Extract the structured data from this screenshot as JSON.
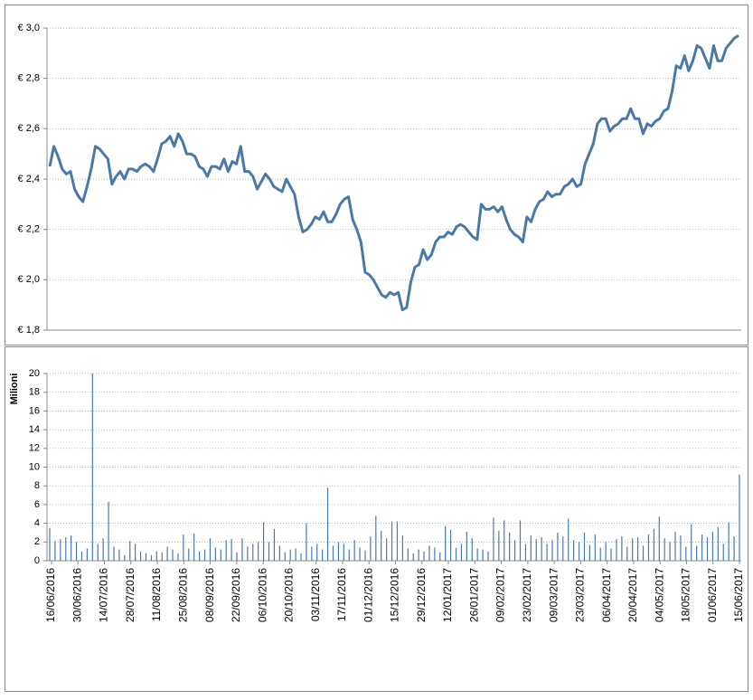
{
  "chart_data": [
    {
      "type": "line",
      "ylim": [
        1.8,
        3.0
      ],
      "yticks": [
        {
          "value": 1.8,
          "label": "€ 1,8"
        },
        {
          "value": 2.0,
          "label": "€ 2,0"
        },
        {
          "value": 2.2,
          "label": "€ 2,2"
        },
        {
          "value": 2.4,
          "label": "€ 2,4"
        },
        {
          "value": 2.6,
          "label": "€ 2,6"
        },
        {
          "value": 2.8,
          "label": "€ 2,8"
        },
        {
          "value": 3.0,
          "label": "€ 3,0"
        }
      ],
      "grid": true,
      "color": "#4a79a8",
      "values": [
        2.45,
        2.53,
        2.49,
        2.44,
        2.42,
        2.43,
        2.36,
        2.33,
        2.31,
        2.37,
        2.44,
        2.53,
        2.52,
        2.5,
        2.48,
        2.38,
        2.41,
        2.43,
        2.4,
        2.44,
        2.44,
        2.43,
        2.45,
        2.46,
        2.45,
        2.43,
        2.48,
        2.54,
        2.55,
        2.57,
        2.53,
        2.58,
        2.55,
        2.5,
        2.5,
        2.49,
        2.45,
        2.44,
        2.41,
        2.45,
        2.45,
        2.44,
        2.48,
        2.43,
        2.47,
        2.46,
        2.53,
        2.43,
        2.43,
        2.41,
        2.36,
        2.39,
        2.42,
        2.4,
        2.37,
        2.36,
        2.35,
        2.4,
        2.37,
        2.34,
        2.25,
        2.19,
        2.2,
        2.22,
        2.25,
        2.24,
        2.27,
        2.23,
        2.23,
        2.26,
        2.3,
        2.32,
        2.33,
        2.24,
        2.2,
        2.15,
        2.03,
        2.02,
        2.0,
        1.97,
        1.94,
        1.93,
        1.95,
        1.94,
        1.95,
        1.88,
        1.89,
        1.99,
        2.05,
        2.06,
        2.12,
        2.08,
        2.1,
        2.15,
        2.17,
        2.17,
        2.19,
        2.18,
        2.21,
        2.22,
        2.21,
        2.19,
        2.17,
        2.16,
        2.3,
        2.28,
        2.28,
        2.29,
        2.27,
        2.29,
        2.24,
        2.2,
        2.18,
        2.17,
        2.15,
        2.25,
        2.23,
        2.28,
        2.31,
        2.32,
        2.35,
        2.33,
        2.34,
        2.34,
        2.37,
        2.38,
        2.4,
        2.37,
        2.38,
        2.46,
        2.5,
        2.54,
        2.62,
        2.64,
        2.64,
        2.59,
        2.61,
        2.62,
        2.64,
        2.64,
        2.68,
        2.64,
        2.64,
        2.58,
        2.62,
        2.61,
        2.63,
        2.64,
        2.67,
        2.68,
        2.75,
        2.85,
        2.84,
        2.89,
        2.83,
        2.87,
        2.93,
        2.92,
        2.88,
        2.84,
        2.93,
        2.87,
        2.87,
        2.92,
        2.94,
        2.96,
        2.97
      ]
    },
    {
      "type": "bar",
      "ylabel": "Milioni",
      "ylim": [
        0,
        20
      ],
      "yticks": [
        0,
        2,
        4,
        6,
        8,
        10,
        12,
        14,
        16,
        18,
        20
      ],
      "grid": true,
      "color": "#4a7ab0",
      "xticks": [
        "16/06/2016",
        "30/06/2016",
        "14/07/2016",
        "28/07/2016",
        "11/08/2016",
        "25/08/2016",
        "08/09/2016",
        "22/09/2016",
        "06/10/2016",
        "20/10/2016",
        "03/11/2016",
        "17/11/2016",
        "01/12/2016",
        "15/12/2016",
        "29/12/2016",
        "12/01/2017",
        "26/01/2017",
        "09/02/2017",
        "23/02/2017",
        "09/03/2017",
        "23/03/2017",
        "06/04/2017",
        "20/04/2017",
        "04/05/2017",
        "18/05/2017",
        "01/06/2017",
        "15/06/2017"
      ],
      "values": [
        3.5,
        2.1,
        2.3,
        2.5,
        2.7,
        2.0,
        1.0,
        1.3,
        20,
        1.8,
        2.4,
        6.3,
        1.5,
        1.2,
        0.6,
        2.1,
        1.8,
        1.0,
        0.8,
        0.6,
        1.0,
        0.9,
        1.5,
        1.2,
        0.8,
        2.8,
        1.3,
        2.9,
        1.0,
        1.2,
        2.4,
        1.4,
        1.2,
        2.2,
        2.3,
        0.9,
        2.4,
        1.5,
        1.8,
        2.0,
        4.1,
        2.0,
        3.4,
        1.6,
        0.9,
        1.2,
        1.3,
        0.8,
        4.0,
        1.5,
        1.8,
        1.2,
        7.8,
        1.6,
        2.0,
        1.8,
        1.2,
        2.2,
        1.4,
        1.1,
        2.6,
        4.8,
        3.2,
        2.4,
        4.2,
        4.2,
        2.7,
        1.3,
        0.8,
        1.2,
        1.0,
        1.6,
        1.4,
        0.9,
        3.7,
        3.3,
        1.4,
        1.8,
        3.1,
        2.4,
        1.3,
        1.2,
        1.0,
        4.6,
        3.2,
        4.3,
        3.0,
        2.2,
        4.3,
        1.8,
        2.7,
        2.3,
        2.5,
        1.8,
        2.2,
        3.0,
        2.6,
        4.5,
        2.2,
        2.0,
        3.0,
        1.7,
        2.8,
        1.4,
        2.0,
        1.3,
        2.3,
        2.6,
        1.5,
        2.4,
        2.5,
        1.6,
        2.8,
        3.4,
        4.7,
        2.4,
        2.0,
        3.1,
        2.7,
        1.5,
        3.9,
        1.6,
        2.8,
        2.5,
        3.1,
        3.6,
        1.8,
        4.1,
        2.6,
        9.2
      ]
    }
  ]
}
